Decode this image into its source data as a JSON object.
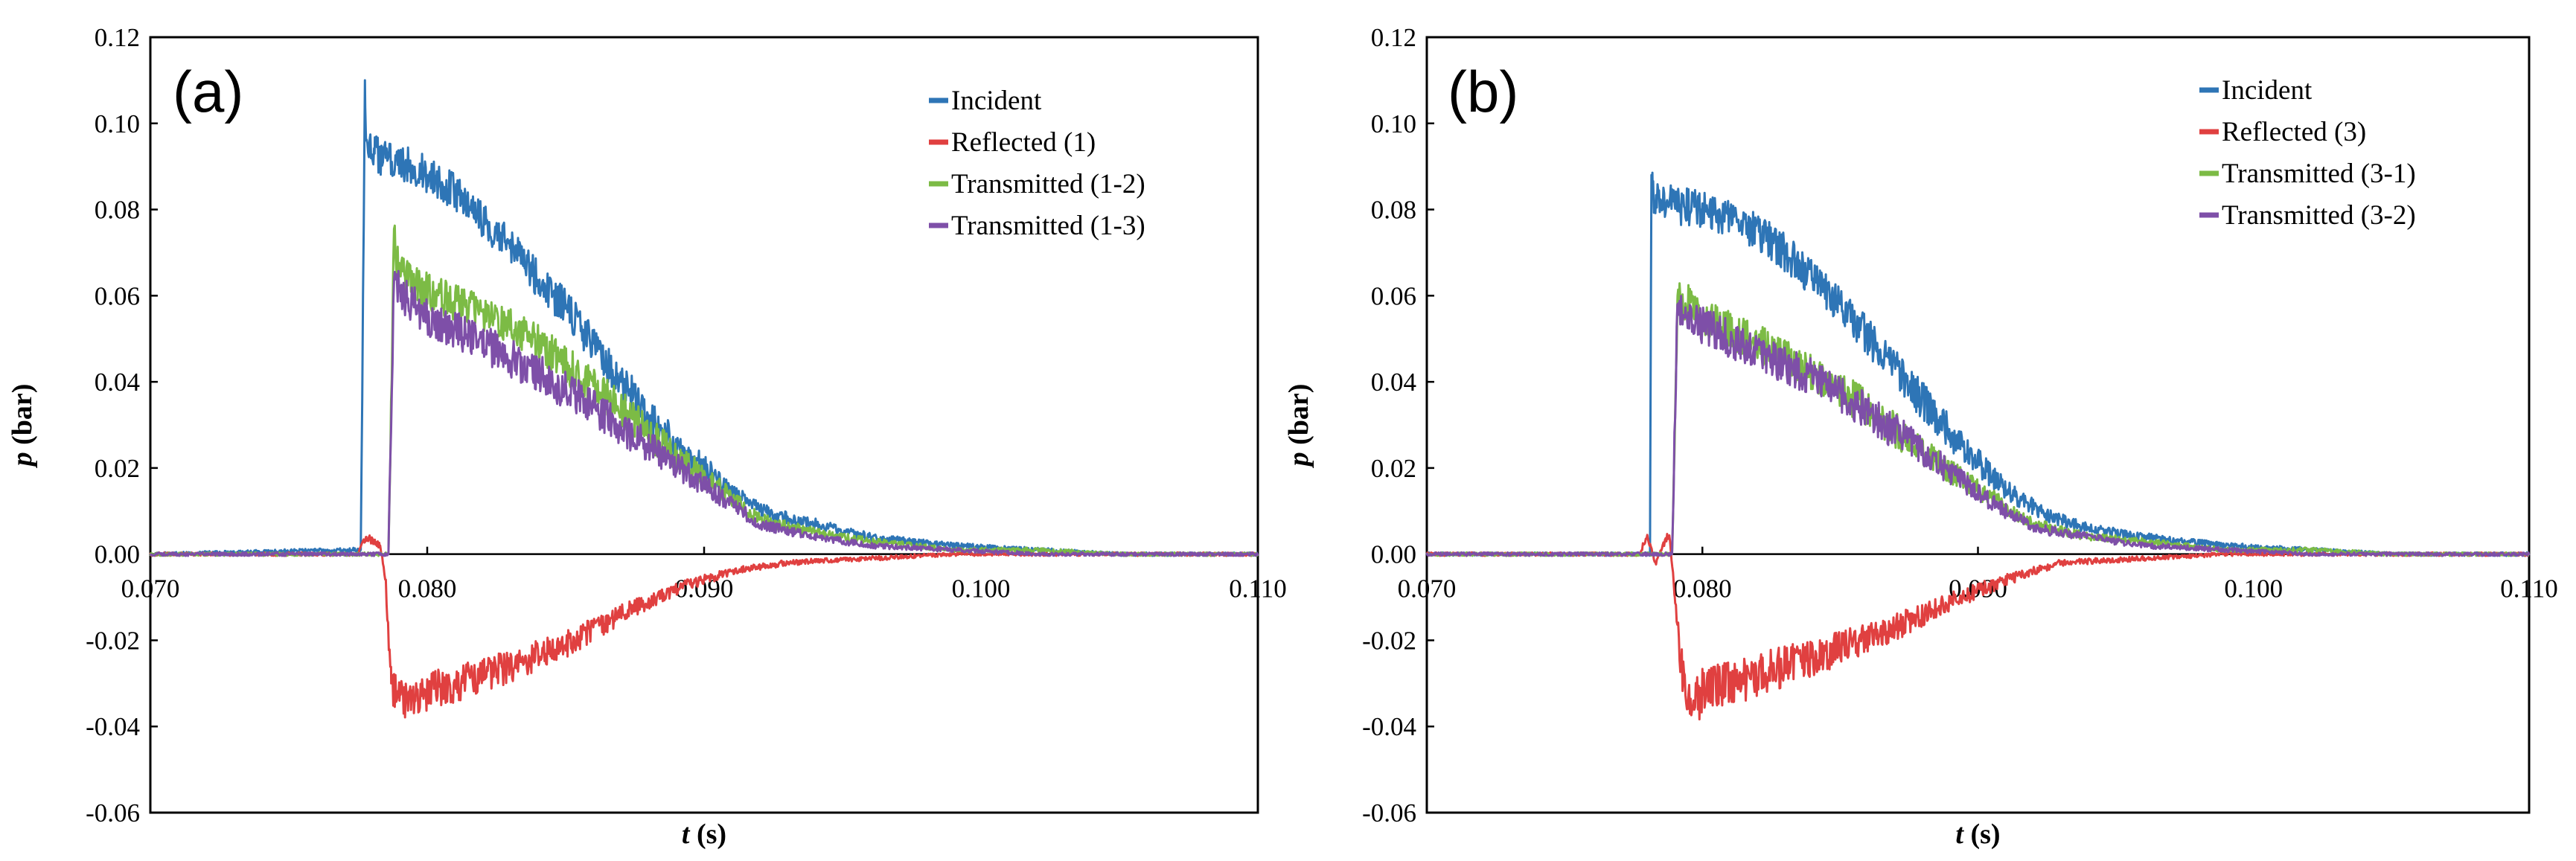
{
  "chart_data": [
    {
      "type": "line",
      "panel_label": "(a)",
      "xlabel": "t (s)",
      "ylabel": "p (bar)",
      "xlim": [
        0.07,
        0.11
      ],
      "ylim": [
        -0.06,
        0.12
      ],
      "xticks": [
        0.07,
        0.08,
        0.09,
        0.1,
        0.11
      ],
      "xtick_labels": [
        "0.070",
        "0.080",
        "0.090",
        "0.100",
        "0.110"
      ],
      "yticks": [
        0.12,
        0.1,
        0.08,
        0.06,
        0.04,
        0.02,
        0.0,
        -0.02,
        -0.04,
        -0.06
      ],
      "ytick_labels": [
        "0.12",
        "0.10",
        "0.08",
        "0.06",
        "0.04",
        "0.02",
        "0.00",
        "-0.02",
        "-0.04",
        "-0.06"
      ],
      "legend_position": "top-right",
      "series": [
        {
          "name": "Incident",
          "color": "#2E75B6",
          "noise": 0.004,
          "x": [
            0.07,
            0.0776,
            0.07775,
            0.0778,
            0.0781,
            0.0785,
            0.079,
            0.08,
            0.081,
            0.082,
            0.083,
            0.085,
            0.087,
            0.089,
            0.09,
            0.091,
            0.0925,
            0.094,
            0.096,
            0.099,
            0.102,
            0.105,
            0.11
          ],
          "y": [
            0.0,
            0.001,
            0.11,
            0.096,
            0.093,
            0.092,
            0.091,
            0.088,
            0.084,
            0.078,
            0.071,
            0.057,
            0.04,
            0.025,
            0.02,
            0.014,
            0.009,
            0.007,
            0.004,
            0.002,
            0.001,
            0.0,
            0.0
          ]
        },
        {
          "name": "Reflected (1)",
          "color": "#E04040",
          "noise": 0.004,
          "x": [
            0.07,
            0.0775,
            0.0778,
            0.0783,
            0.0785,
            0.0787,
            0.079,
            0.08,
            0.081,
            0.083,
            0.085,
            0.087,
            0.089,
            0.091,
            0.093,
            0.096,
            0.099,
            0.102,
            0.105,
            0.11
          ],
          "y": [
            0.0,
            0.0,
            0.004,
            0.002,
            -0.006,
            -0.03,
            -0.034,
            -0.032,
            -0.03,
            -0.026,
            -0.021,
            -0.014,
            -0.008,
            -0.004,
            -0.002,
            -0.001,
            0.0,
            0.0,
            0.0,
            0.0
          ]
        },
        {
          "name": "Transmitted (1-2)",
          "color": "#7CBB45",
          "noise": 0.004,
          "x": [
            0.07,
            0.0786,
            0.0788,
            0.079,
            0.0795,
            0.08,
            0.082,
            0.084,
            0.086,
            0.088,
            0.09,
            0.092,
            0.094,
            0.096,
            0.099,
            0.102,
            0.105,
            0.11
          ],
          "y": [
            0.0,
            0.0,
            0.074,
            0.065,
            0.063,
            0.061,
            0.056,
            0.049,
            0.039,
            0.028,
            0.018,
            0.008,
            0.005,
            0.003,
            0.001,
            0.001,
            0.0,
            0.0
          ]
        },
        {
          "name": "Transmitted (1-3)",
          "color": "#7E4FA8",
          "noise": 0.004,
          "x": [
            0.07,
            0.0786,
            0.0788,
            0.079,
            0.0795,
            0.08,
            0.082,
            0.084,
            0.086,
            0.088,
            0.09,
            0.092,
            0.094,
            0.096,
            0.099,
            0.102,
            0.105,
            0.11
          ],
          "y": [
            0.0,
            0.0,
            0.064,
            0.061,
            0.058,
            0.055,
            0.049,
            0.042,
            0.034,
            0.025,
            0.016,
            0.007,
            0.004,
            0.002,
            0.001,
            0.0,
            0.0,
            0.0
          ]
        }
      ]
    },
    {
      "type": "line",
      "panel_label": "(b)",
      "xlabel": "t (s)",
      "ylabel": "p (bar)",
      "xlim": [
        0.07,
        0.11
      ],
      "ylim": [
        -0.06,
        0.12
      ],
      "xticks": [
        0.07,
        0.08,
        0.09,
        0.1,
        0.11
      ],
      "xtick_labels": [
        "0.070",
        "0.080",
        "0.090",
        "0.100",
        "0.110"
      ],
      "yticks": [
        0.12,
        0.1,
        0.08,
        0.06,
        0.04,
        0.02,
        0.0,
        -0.02,
        -0.04,
        -0.06
      ],
      "ytick_labels": [
        "0.12",
        "0.10",
        "0.08",
        "0.06",
        "0.04",
        "0.02",
        "0.00",
        "-0.02",
        "-0.04",
        "-0.06"
      ],
      "legend_position": "top-right",
      "series": [
        {
          "name": "Incident",
          "color": "#2E75B6",
          "noise": 0.004,
          "x": [
            0.07,
            0.0781,
            0.07815,
            0.0782,
            0.0785,
            0.079,
            0.08,
            0.081,
            0.082,
            0.083,
            0.085,
            0.087,
            0.089,
            0.091,
            0.0925,
            0.094,
            0.096,
            0.099,
            0.102,
            0.105,
            0.11
          ],
          "y": [
            0.0,
            0.0,
            0.088,
            0.083,
            0.082,
            0.081,
            0.08,
            0.078,
            0.075,
            0.07,
            0.058,
            0.043,
            0.028,
            0.015,
            0.009,
            0.006,
            0.004,
            0.002,
            0.001,
            0.0,
            0.0
          ]
        },
        {
          "name": "Reflected (3)",
          "color": "#E04040",
          "noise": 0.005,
          "x": [
            0.07,
            0.0777,
            0.078,
            0.0783,
            0.0788,
            0.079,
            0.0793,
            0.0797,
            0.08,
            0.081,
            0.083,
            0.085,
            0.087,
            0.089,
            0.091,
            0.093,
            0.096,
            0.099,
            0.102,
            0.105,
            0.11
          ],
          "y": [
            0.0,
            0.0,
            0.004,
            -0.002,
            0.005,
            -0.01,
            -0.03,
            -0.035,
            -0.032,
            -0.03,
            -0.026,
            -0.022,
            -0.017,
            -0.011,
            -0.006,
            -0.002,
            -0.001,
            0.0,
            0.0,
            0.0,
            0.0
          ]
        },
        {
          "name": "Transmitted (3-1)",
          "color": "#7CBB45",
          "noise": 0.004,
          "x": [
            0.07,
            0.0789,
            0.0791,
            0.0795,
            0.08,
            0.082,
            0.084,
            0.086,
            0.088,
            0.09,
            0.092,
            0.094,
            0.096,
            0.099,
            0.102,
            0.105,
            0.11
          ],
          "y": [
            0.0,
            0.0,
            0.06,
            0.058,
            0.055,
            0.049,
            0.042,
            0.034,
            0.024,
            0.015,
            0.007,
            0.004,
            0.003,
            0.001,
            0.001,
            0.0,
            0.0
          ]
        },
        {
          "name": "Transmitted (3-2)",
          "color": "#7E4FA8",
          "noise": 0.004,
          "x": [
            0.07,
            0.0789,
            0.0791,
            0.0795,
            0.08,
            0.082,
            0.084,
            0.086,
            0.088,
            0.09,
            0.092,
            0.094,
            0.096,
            0.099,
            0.102,
            0.105,
            0.11
          ],
          "y": [
            0.0,
            0.0,
            0.058,
            0.056,
            0.053,
            0.047,
            0.041,
            0.033,
            0.024,
            0.014,
            0.006,
            0.004,
            0.002,
            0.001,
            0.0,
            0.0,
            0.0
          ]
        }
      ]
    }
  ]
}
